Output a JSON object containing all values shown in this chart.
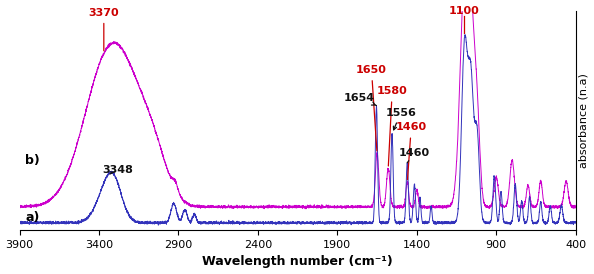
{
  "xlim": [
    3900,
    400
  ],
  "ylim": [
    -0.03,
    1.0
  ],
  "xlabel": "Wavelength number (cm⁻¹)",
  "ylabel": "absorbance (n.a)",
  "curve_a_color": "#3333bb",
  "curve_b_color": "#cc00cc",
  "ann_red": "#cc0000",
  "ann_black": "#111111",
  "label_a": "a)",
  "label_b": "b)",
  "xticks": [
    3900,
    3400,
    2900,
    2400,
    1900,
    1400,
    900,
    400
  ]
}
